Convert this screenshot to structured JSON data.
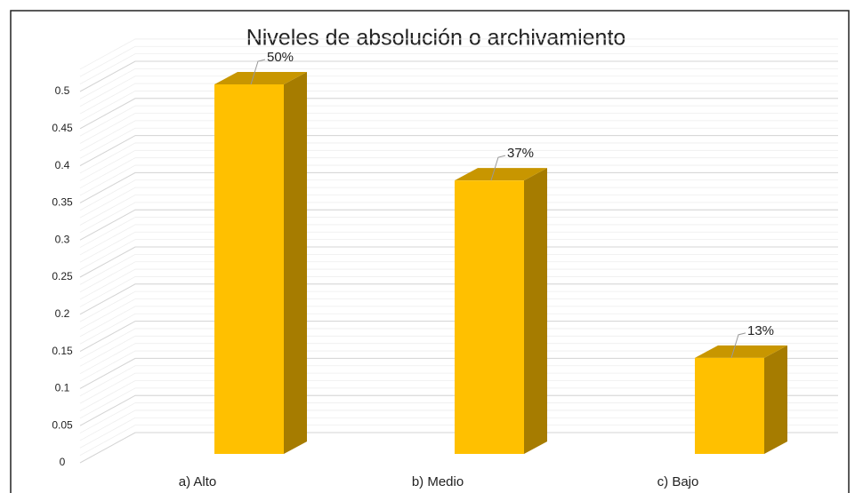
{
  "chart_data": {
    "type": "bar",
    "title": "Niveles de absolución o archivamiento",
    "categories": [
      "a) Alto",
      "b) Medio",
      "c) Bajo"
    ],
    "values": [
      0.5,
      0.37,
      0.13
    ],
    "value_labels": [
      "50%",
      "37%",
      "13%"
    ],
    "color": "#ffc000",
    "ylim": [
      0,
      0.5
    ],
    "yticks": [
      0,
      0.05,
      0.1,
      0.15,
      0.2,
      0.25,
      0.3,
      0.35,
      0.4,
      0.45,
      0.5
    ],
    "grid": true
  }
}
